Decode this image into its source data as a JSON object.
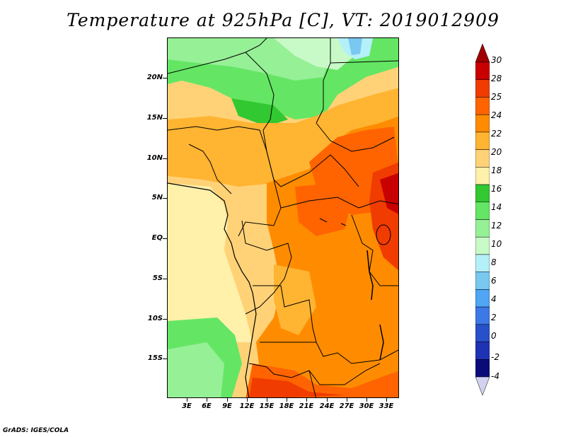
{
  "title": "Temperature at 925hPa [C], VT: 2019012909",
  "credit": "GrADS: IGES/COLA",
  "lat_labels": [
    "20N",
    "15N",
    "10N",
    "5N",
    "EQ",
    "5S",
    "10S",
    "15S"
  ],
  "lon_labels": [
    "3E",
    "6E",
    "9E",
    "12E",
    "15E",
    "18E",
    "21E",
    "24E",
    "27E",
    "30E",
    "33E"
  ],
  "colorbar": {
    "labels": [
      "30",
      "28",
      "25",
      "24",
      "22",
      "20",
      "18",
      "16",
      "14",
      "12",
      "10",
      "8",
      "6",
      "4",
      "2",
      "0",
      "-2",
      "-4"
    ],
    "colors": [
      "#c80000",
      "#f03c00",
      "#ff6400",
      "#ff8c00",
      "#ffb432",
      "#ffd278",
      "#fff0aa",
      "#32c832",
      "#64e664",
      "#96f096",
      "#c8fac8",
      "#b4f0fa",
      "#78c8f0",
      "#50a5f5",
      "#3c78e6",
      "#2850c8",
      "#1e32b4",
      "#0a0a78"
    ],
    "arrow_top_color": "#a00000",
    "arrow_bottom_color": "#d2d2f0"
  }
}
